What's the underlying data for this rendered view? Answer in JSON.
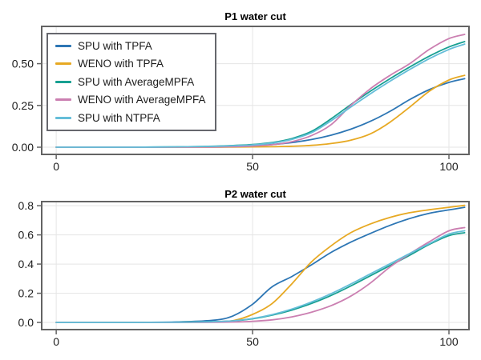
{
  "style": {
    "background": "#ffffff",
    "spine_color": "#636363",
    "grid_color": "#e5e5e5",
    "tick_label_color": "#1c1c1c",
    "legend_border_color": "#66676d"
  },
  "chart_data": [
    {
      "type": "line",
      "title": "P1 water cut",
      "xlabel": "",
      "ylabel": "",
      "xlim": [
        -3.7,
        105.1
      ],
      "ylim": [
        -0.043,
        0.723
      ],
      "xticks": [
        0,
        50,
        100
      ],
      "xtick_labels": [
        "0",
        "50",
        "100"
      ],
      "yticks": [
        0,
        0.25,
        0.5
      ],
      "ytick_labels": [
        "0.00",
        "0.25",
        "0.50"
      ],
      "grid": true,
      "legend": {
        "visible": true,
        "location": "upper left"
      },
      "x": [
        0,
        10,
        20,
        30,
        40,
        45,
        50,
        55,
        60,
        65,
        70,
        75,
        80,
        85,
        90,
        95,
        100,
        104
      ],
      "series": [
        {
          "name": "SPU with TPFA",
          "color": "#2d76b4",
          "values": [
            0,
            0,
            0,
            0.001,
            0.003,
            0.005,
            0.009,
            0.016,
            0.028,
            0.046,
            0.072,
            0.108,
            0.155,
            0.215,
            0.285,
            0.345,
            0.388,
            0.41
          ]
        },
        {
          "name": "WENO with TPFA",
          "color": "#e7a923",
          "values": [
            0,
            0,
            0,
            0,
            0,
            0.001,
            0.002,
            0.003,
            0.006,
            0.011,
            0.022,
            0.042,
            0.08,
            0.15,
            0.24,
            0.335,
            0.402,
            0.43
          ]
        },
        {
          "name": "SPU with AverageMPFA",
          "color": "#18a092",
          "values": [
            0,
            0,
            0,
            0.002,
            0.006,
            0.01,
            0.016,
            0.028,
            0.052,
            0.095,
            0.17,
            0.255,
            0.335,
            0.41,
            0.48,
            0.545,
            0.6,
            0.632
          ]
        },
        {
          "name": "WENO with AverageMPFA",
          "color": "#cb7fb1",
          "values": [
            0,
            0,
            0,
            0,
            0.001,
            0.003,
            0.007,
            0.015,
            0.033,
            0.07,
            0.135,
            0.25,
            0.35,
            0.43,
            0.5,
            0.585,
            0.65,
            0.675
          ]
        },
        {
          "name": "SPU with NTPFA",
          "color": "#65bed9",
          "values": [
            0,
            0,
            0,
            0.002,
            0.005,
            0.009,
            0.014,
            0.025,
            0.047,
            0.087,
            0.158,
            0.24,
            0.32,
            0.395,
            0.465,
            0.53,
            0.585,
            0.617
          ]
        }
      ]
    },
    {
      "type": "line",
      "title": "P2 water cut",
      "xlabel": "",
      "ylabel": "",
      "xlim": [
        -3.7,
        105.1
      ],
      "ylim": [
        -0.049,
        0.828
      ],
      "xticks": [
        0,
        50,
        100
      ],
      "xtick_labels": [
        "0",
        "50",
        "100"
      ],
      "yticks": [
        0,
        0.2,
        0.4,
        0.6,
        0.8
      ],
      "ytick_labels": [
        "0.0",
        "0.2",
        "0.4",
        "0.6",
        "0.8"
      ],
      "grid": true,
      "legend": {
        "visible": false
      },
      "x": [
        0,
        10,
        20,
        30,
        40,
        45,
        50,
        55,
        60,
        65,
        70,
        75,
        80,
        85,
        90,
        95,
        100,
        104
      ],
      "series": [
        {
          "name": "SPU with TPFA",
          "color": "#2d76b4",
          "values": [
            0,
            0,
            0.001,
            0.003,
            0.015,
            0.045,
            0.125,
            0.245,
            0.315,
            0.395,
            0.48,
            0.55,
            0.61,
            0.665,
            0.712,
            0.748,
            0.771,
            0.789
          ]
        },
        {
          "name": "WENO with TPFA",
          "color": "#e7a923",
          "values": [
            0,
            0,
            0,
            0.001,
            0.004,
            0.012,
            0.055,
            0.13,
            0.265,
            0.415,
            0.525,
            0.615,
            0.675,
            0.72,
            0.752,
            0.772,
            0.789,
            0.802
          ]
        },
        {
          "name": "SPU with AverageMPFA",
          "color": "#18a092",
          "values": [
            0,
            0,
            0,
            0.001,
            0.005,
            0.01,
            0.025,
            0.05,
            0.085,
            0.13,
            0.185,
            0.25,
            0.32,
            0.39,
            0.46,
            0.535,
            0.595,
            0.615
          ]
        },
        {
          "name": "WENO with AverageMPFA",
          "color": "#cb7fb1",
          "values": [
            0,
            0,
            0,
            0,
            0.001,
            0.003,
            0.008,
            0.018,
            0.038,
            0.07,
            0.115,
            0.18,
            0.27,
            0.38,
            0.47,
            0.553,
            0.628,
            0.65
          ]
        },
        {
          "name": "SPU with NTPFA",
          "color": "#65bed9",
          "values": [
            0,
            0,
            0,
            0.001,
            0.005,
            0.011,
            0.027,
            0.054,
            0.092,
            0.14,
            0.197,
            0.263,
            0.333,
            0.402,
            0.472,
            0.54,
            0.606,
            0.628
          ]
        }
      ]
    }
  ]
}
